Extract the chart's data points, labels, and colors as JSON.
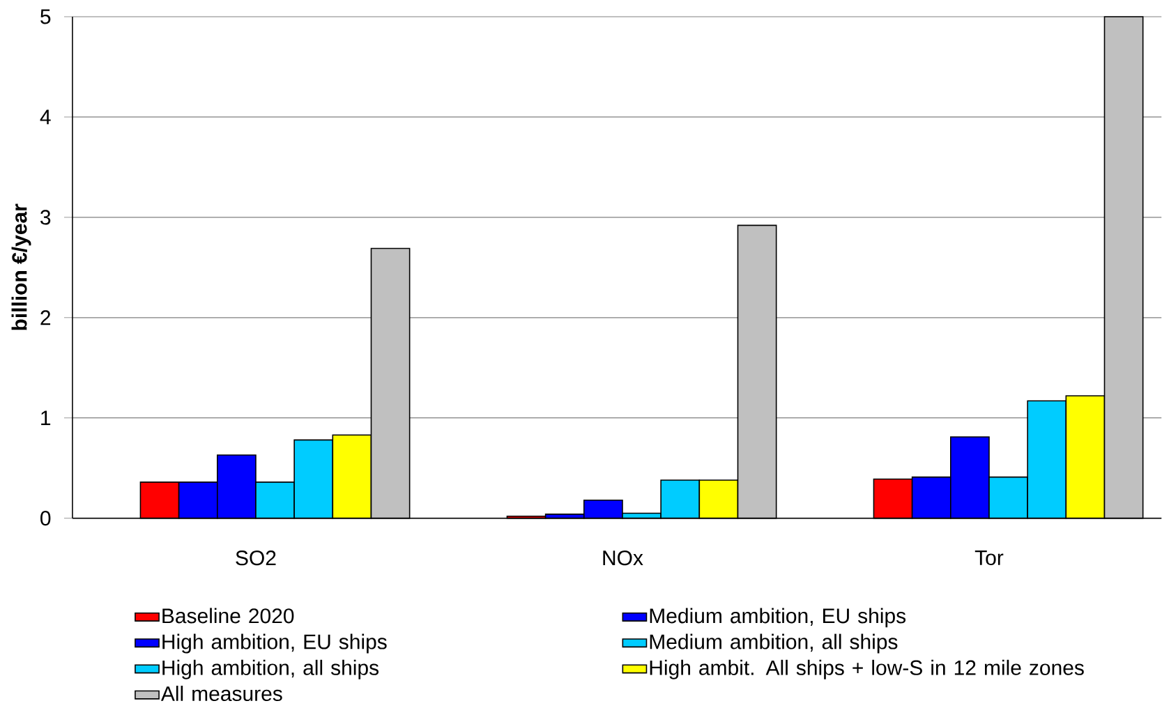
{
  "chart_data": {
    "type": "bar",
    "ylabel": "billion €/year",
    "categories": [
      "SO2",
      "NOx",
      "Tor"
    ],
    "series": [
      {
        "name": "Baseline 2020",
        "color": "#ff0000",
        "values": [
          0.36,
          0.02,
          0.39
        ]
      },
      {
        "name": "Medium ambition, EU ships",
        "color": "#0000ff",
        "values": [
          0.36,
          0.04,
          0.41
        ]
      },
      {
        "name": "High ambition, EU ships",
        "color": "#0000ff",
        "values": [
          0.63,
          0.18,
          0.81
        ]
      },
      {
        "name": "Medium ambition, all ships",
        "color": "#00ccff",
        "values": [
          0.36,
          0.05,
          0.41
        ]
      },
      {
        "name": "High ambition, all ships",
        "color": "#00ccff",
        "values": [
          0.78,
          0.38,
          1.17
        ]
      },
      {
        "name": "High ambit. All ships + low-S in 12 mile zones",
        "color": "#ffff00",
        "values": [
          0.83,
          0.38,
          1.22
        ]
      },
      {
        "name": "All measures",
        "color": "#c0c0c0",
        "values": [
          2.69,
          2.92,
          5
        ]
      }
    ],
    "ylim": [
      0,
      5
    ],
    "yticks": [
      0,
      1,
      2,
      3,
      4,
      5
    ],
    "grid": "y",
    "legend": "bottom"
  }
}
